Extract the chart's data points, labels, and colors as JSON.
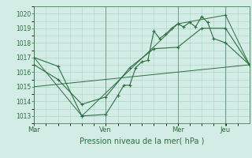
{
  "title": "",
  "xlabel": "Pression niveau de la mer( hPa )",
  "bg_color": "#d4ece6",
  "grid_color": "#a8d4cc",
  "line_color": "#2d6e3e",
  "ylim": [
    1012.5,
    1020.5
  ],
  "yticks": [
    1013,
    1014,
    1015,
    1016,
    1017,
    1018,
    1019,
    1020
  ],
  "day_labels": [
    "Mar",
    "Ven",
    "Mer",
    "Jeu"
  ],
  "day_positions": [
    0,
    0.333,
    0.667,
    0.889
  ],
  "xlim": [
    0.0,
    1.0
  ],
  "series1_x": [
    0.0,
    0.111,
    0.222,
    0.333,
    0.389,
    0.417,
    0.444,
    0.472,
    0.5,
    0.528,
    0.556,
    0.583,
    0.611,
    0.639,
    0.667,
    0.694,
    0.722,
    0.75,
    0.778,
    0.806,
    0.833,
    0.889,
    1.0
  ],
  "series1_y": [
    1017.0,
    1016.4,
    1013.0,
    1013.1,
    1014.4,
    1015.1,
    1015.1,
    1016.3,
    1016.7,
    1016.8,
    1018.8,
    1018.3,
    1018.6,
    1019.0,
    1019.3,
    1019.1,
    1019.4,
    1019.1,
    1019.8,
    1019.4,
    1018.3,
    1018.0,
    1016.5
  ],
  "series2_x": [
    0.0,
    0.111,
    0.222,
    0.333,
    0.444,
    0.556,
    0.667,
    0.778,
    0.889,
    1.0
  ],
  "series2_y": [
    1016.5,
    1015.5,
    1013.8,
    1014.3,
    1016.3,
    1017.6,
    1017.7,
    1019.0,
    1019.0,
    1016.5
  ],
  "series3_x": [
    0.0,
    0.222,
    0.667,
    0.889,
    1.0
  ],
  "series3_y": [
    1017.0,
    1013.0,
    1019.3,
    1019.9,
    1016.5
  ],
  "series4_x": [
    0.0,
    1.0
  ],
  "series4_y": [
    1015.0,
    1016.5
  ]
}
